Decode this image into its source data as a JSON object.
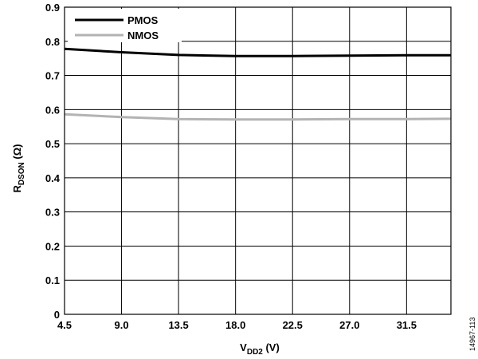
{
  "chart_data": {
    "type": "line",
    "xlabel": {
      "main": "V",
      "sub": "DD2",
      "unit": " (V)"
    },
    "ylabel": {
      "main": "R",
      "sub": "DSON",
      "unit": " (Ω)"
    },
    "xlim": [
      4.5,
      35.0
    ],
    "ylim": [
      0,
      0.9
    ],
    "x_ticks": [
      "4.5",
      "9.0",
      "13.5",
      "18.0",
      "22.5",
      "27.0",
      "31.5"
    ],
    "y_ticks": [
      "0",
      "0.1",
      "0.2",
      "0.3",
      "0.4",
      "0.5",
      "0.6",
      "0.7",
      "0.8",
      "0.9"
    ],
    "grid": true,
    "legend_position": "top-left",
    "series": [
      {
        "name": "PMOS",
        "color": "#000000",
        "x": [
          4.5,
          9.0,
          13.5,
          18.0,
          22.5,
          27.0,
          31.5,
          35.0
        ],
        "y": [
          0.778,
          0.768,
          0.76,
          0.757,
          0.757,
          0.758,
          0.759,
          0.759
        ]
      },
      {
        "name": "NMOS",
        "color": "#b3b3b3",
        "x": [
          4.5,
          9.0,
          13.5,
          18.0,
          22.5,
          27.0,
          31.5,
          35.0
        ],
        "y": [
          0.586,
          0.578,
          0.572,
          0.571,
          0.571,
          0.572,
          0.572,
          0.573
        ]
      }
    ]
  },
  "figure_id": "14967-113"
}
